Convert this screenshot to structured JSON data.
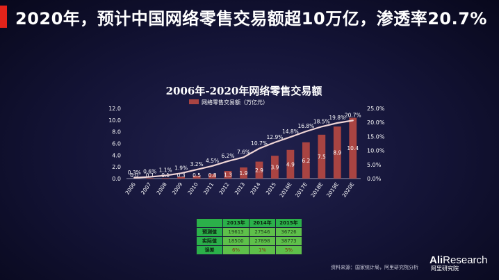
{
  "headline": "2020年，预计中国网络零售交易额超10万亿，渗透率20.7%",
  "chart_data": {
    "type": "bar",
    "title": "2006年-2020年网络零售交易额",
    "categories": [
      "2006",
      "2007",
      "2008",
      "2009",
      "2010",
      "2011",
      "2012",
      "2013",
      "2014",
      "2015",
      "2016E",
      "2017E",
      "2018E",
      "2019E",
      "2020E"
    ],
    "series": [
      {
        "name": "网络零售交易额（万亿元）",
        "type": "bar",
        "axis": "left",
        "values": [
          0.0,
          0.1,
          0.1,
          0.3,
          0.5,
          0.8,
          1.3,
          1.9,
          2.9,
          3.9,
          4.9,
          6.2,
          7.5,
          8.9,
          10.4
        ],
        "labels": [
          "0.0",
          "0.1",
          "0.1",
          "0.3",
          "0.5",
          "0.8",
          "1.3",
          "1.9",
          "2.9",
          "3.9",
          "4.9",
          "6.2",
          "7.5",
          "8.9",
          "10.4"
        ]
      },
      {
        "type": "line",
        "axis": "right",
        "values": [
          0.3,
          0.6,
          1.1,
          1.9,
          3.2,
          4.5,
          6.2,
          7.6,
          10.7,
          12.9,
          14.8,
          16.8,
          18.5,
          19.8,
          20.7
        ],
        "labels": [
          "0.3%",
          "0.6%",
          "1.1%",
          "1.9%",
          "3.2%",
          "4.5%",
          "6.2%",
          "7.6%",
          "10.7%",
          "12.9%",
          "14.8%",
          "16.8%",
          "18.5%",
          "19.8%",
          "20.7%"
        ]
      }
    ],
    "y_left": {
      "range": [
        0,
        12
      ],
      "ticks": [
        "0.0",
        "2.0",
        "4.0",
        "6.0",
        "8.0",
        "10.0",
        "12.0"
      ]
    },
    "y_right": {
      "range": [
        0,
        25
      ],
      "ticks": [
        "0.0%",
        "5.0%",
        "10.0%",
        "15.0%",
        "20.0%",
        "25.0%"
      ]
    },
    "legend_position": "top",
    "colors": {
      "bar": "#a94442",
      "line": "#f0d6d6",
      "text": "#ffffff"
    }
  },
  "table": {
    "headers": [
      "",
      "2013年",
      "2014年",
      "2015年"
    ],
    "rows": [
      {
        "label": "预测值",
        "values": [
          "19613",
          "27546",
          "36726"
        ]
      },
      {
        "label": "实际值",
        "values": [
          "18500",
          "27898",
          "38773"
        ]
      },
      {
        "label": "误差",
        "values": [
          "6%",
          "1%",
          "5%"
        ]
      }
    ]
  },
  "source": "资料来源：国家统计局，阿里研究院分析",
  "logo": {
    "part1": "Ali",
    "part2": "Research",
    "sub": "阿里研究院"
  }
}
